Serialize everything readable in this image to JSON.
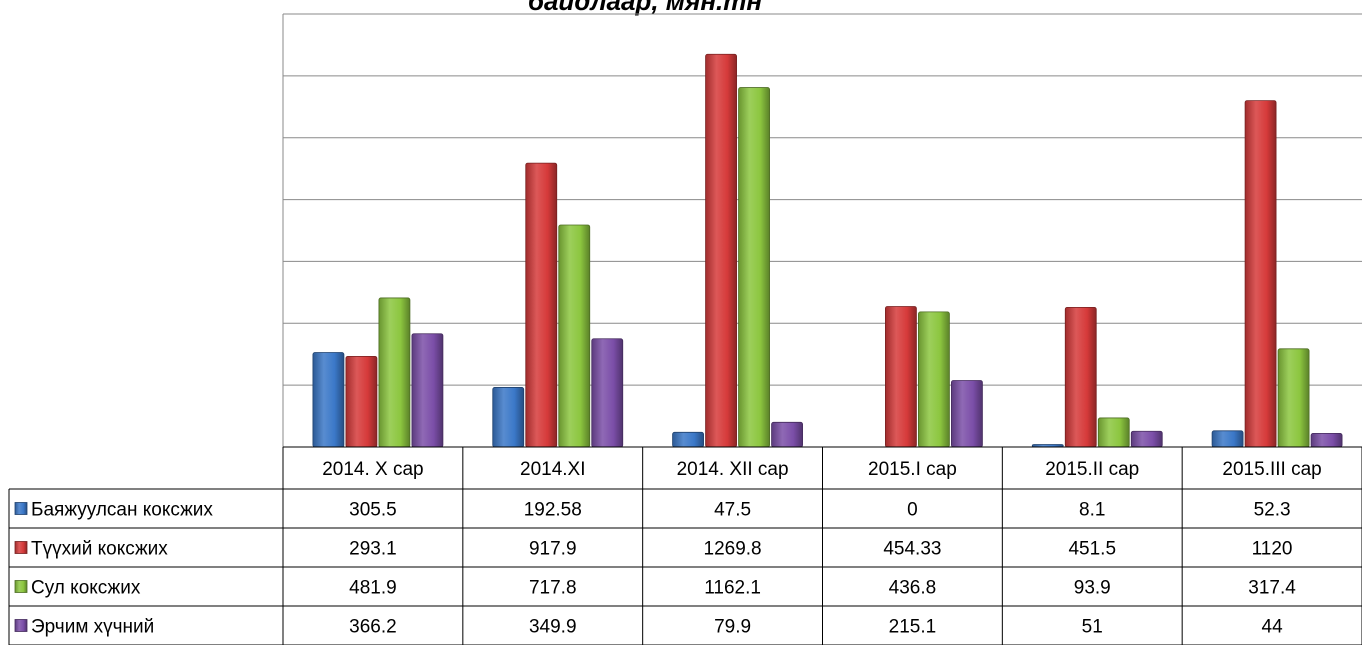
{
  "chart_data": {
    "type": "bar",
    "title": "байдлаар, мян.тн",
    "categories": [
      "2014. X сар",
      "2014.XI",
      "2014. XII сар",
      "2015.I сар",
      "2015.II сар",
      "2015.III сар"
    ],
    "series": [
      {
        "name": "Баяжуулсан коксжих",
        "values": [
          "305.5",
          "192.58",
          "47.5",
          "0",
          "8.1",
          "52.3"
        ]
      },
      {
        "name": "Түүхий коксжих",
        "values": [
          "293.1",
          "917.9",
          "1269.8",
          "454.33",
          "451.5",
          "1120"
        ]
      },
      {
        "name": "Сул коксжих",
        "values": [
          "481.9",
          "717.8",
          "1162.1",
          "436.8",
          "93.9",
          "317.4"
        ]
      },
      {
        "name": "Эрчим хүчний",
        "values": [
          "366.2",
          "349.9",
          "79.9",
          "215.1",
          "51",
          "44"
        ]
      }
    ],
    "ylim": [
      0,
      1400
    ],
    "grid": true,
    "legend": "left, inside data table",
    "colors": [
      "#3b78c8",
      "#d63a3a",
      "#8cc63f",
      "#7b4ea8"
    ]
  }
}
